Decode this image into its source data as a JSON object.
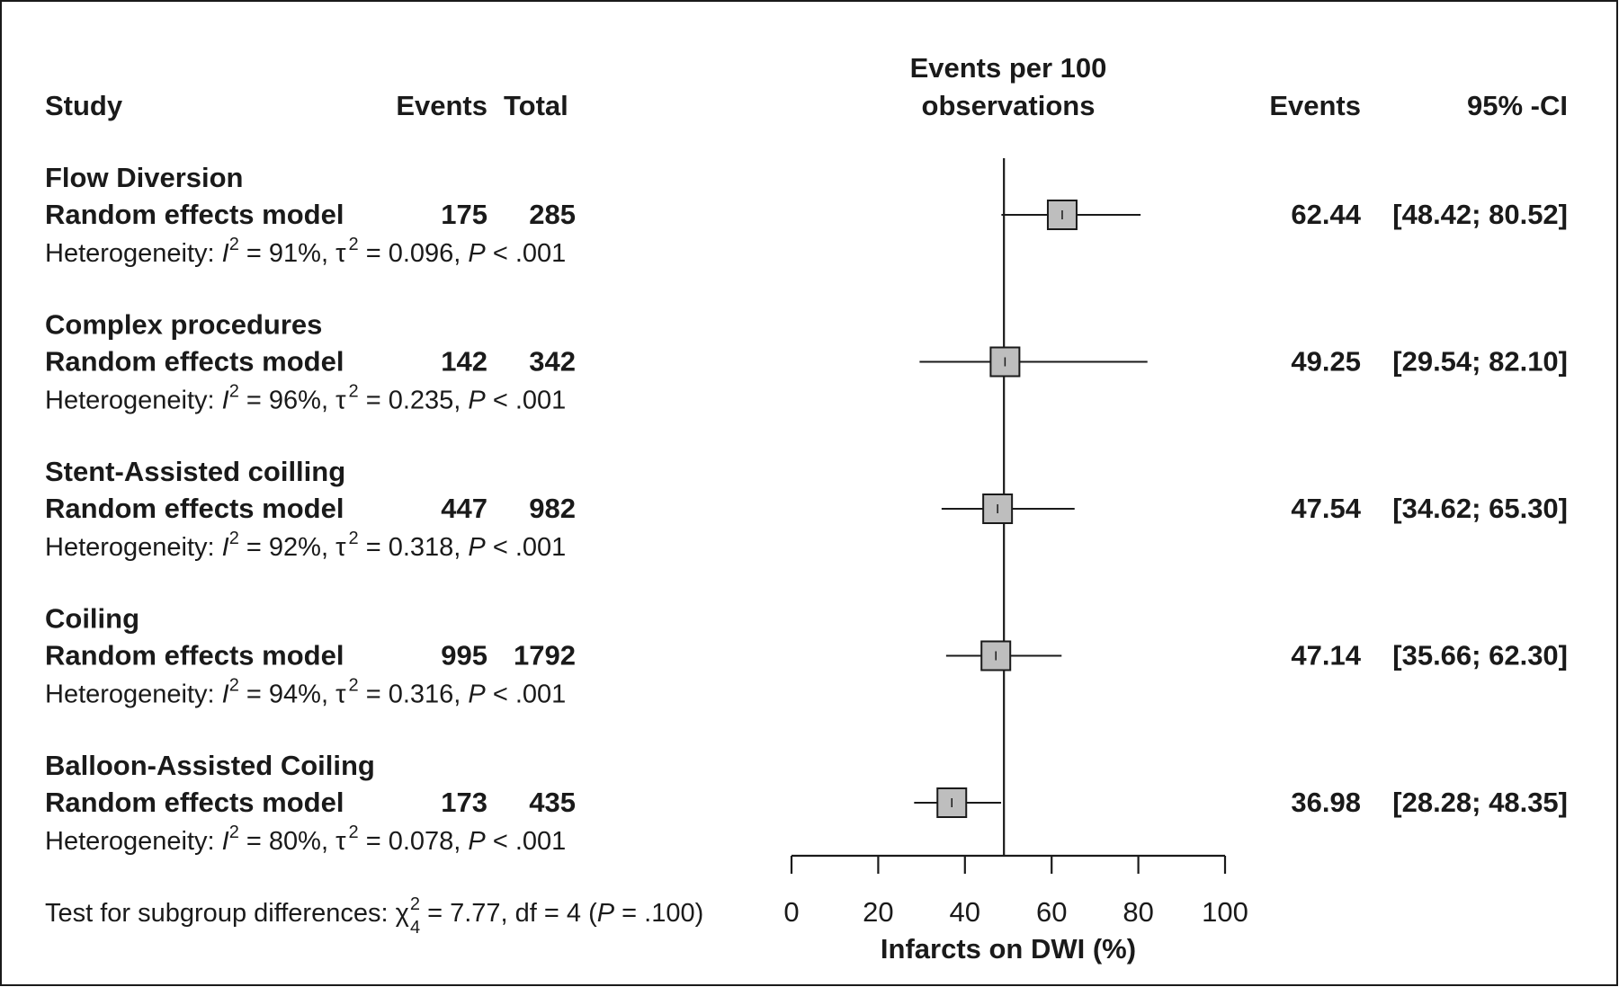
{
  "header": {
    "study": "Study",
    "events": "Events",
    "total": "Total",
    "plot_header_line1": "Events per 100",
    "plot_header_line2": "observations",
    "events_col": "Events",
    "ci_col": "95% -CI"
  },
  "chart_data": {
    "type": "forest",
    "xlabel": "Infarcts on DWI (%)",
    "xlim": [
      0,
      100
    ],
    "xticks": [
      "0",
      "20",
      "40",
      "60",
      "80",
      "100"
    ],
    "xtick_values": [
      0,
      20,
      40,
      60,
      80,
      100
    ],
    "reference_line": 49,
    "box_color": "#bebebe",
    "subgroups": [
      {
        "name": "Flow Diversion",
        "model_label": "Random effects model",
        "events": "175",
        "total": "285",
        "estimate": 62.44,
        "ci_lower": 48.42,
        "ci_upper": 80.52,
        "estimate_text": "62.44",
        "ci_text": "[48.42; 80.52]",
        "het_prefix": "Heterogeneity: ",
        "het_i_symbol": "I",
        "het_i_value": " = 91%, ",
        "het_tau_symbol": "τ",
        "het_tau_value": " = 0.096, ",
        "het_p_symbol": "P",
        "het_p_value": " < .001"
      },
      {
        "name": "Complex procedures",
        "model_label": "Random effects model",
        "events": "142",
        "total": "342",
        "estimate": 49.25,
        "ci_lower": 29.54,
        "ci_upper": 82.1,
        "estimate_text": "49.25",
        "ci_text": "[29.54; 82.10]",
        "het_prefix": "Heterogeneity: ",
        "het_i_symbol": "I",
        "het_i_value": " = 96%, ",
        "het_tau_symbol": "τ",
        "het_tau_value": " = 0.235, ",
        "het_p_symbol": "P",
        "het_p_value": " < .001"
      },
      {
        "name": "Stent-Assisted coilling",
        "model_label": "Random effects model",
        "events": "447",
        "total": "982",
        "estimate": 47.54,
        "ci_lower": 34.62,
        "ci_upper": 65.3,
        "estimate_text": "47.54",
        "ci_text": "[34.62; 65.30]",
        "het_prefix": "Heterogeneity: ",
        "het_i_symbol": "I",
        "het_i_value": " = 92%, ",
        "het_tau_symbol": "τ",
        "het_tau_value": " = 0.318, ",
        "het_p_symbol": "P",
        "het_p_value": " < .001"
      },
      {
        "name": "Coiling",
        "model_label": "Random effects model",
        "events": "995",
        "total": "1792",
        "estimate": 47.14,
        "ci_lower": 35.66,
        "ci_upper": 62.3,
        "estimate_text": "47.14",
        "ci_text": "[35.66; 62.30]",
        "het_prefix": "Heterogeneity: ",
        "het_i_symbol": "I",
        "het_i_value": " = 94%, ",
        "het_tau_symbol": "τ",
        "het_tau_value": " = 0.316, ",
        "het_p_symbol": "P",
        "het_p_value": " < .001"
      },
      {
        "name": "Balloon-Assisted Coiling",
        "model_label": "Random effects model",
        "events": "173",
        "total": "435",
        "estimate": 36.98,
        "ci_lower": 28.28,
        "ci_upper": 48.35,
        "estimate_text": "36.98",
        "ci_text": "[28.28; 48.35]",
        "het_prefix": "Heterogeneity: ",
        "het_i_symbol": "I",
        "het_i_value": " = 80%, ",
        "het_tau_symbol": "τ",
        "het_tau_value": " = 0.078, ",
        "het_p_symbol": "P",
        "het_p_value": " < .001"
      }
    ],
    "subgroup_test": {
      "prefix": "Test for subgroup differences: ",
      "chi_symbol": "χ",
      "chi_sub": "4",
      "chi_sup": "2",
      "stat": " = 7.77, df = 4 (",
      "p_symbol": "P",
      "p_value": " = .100)"
    }
  }
}
